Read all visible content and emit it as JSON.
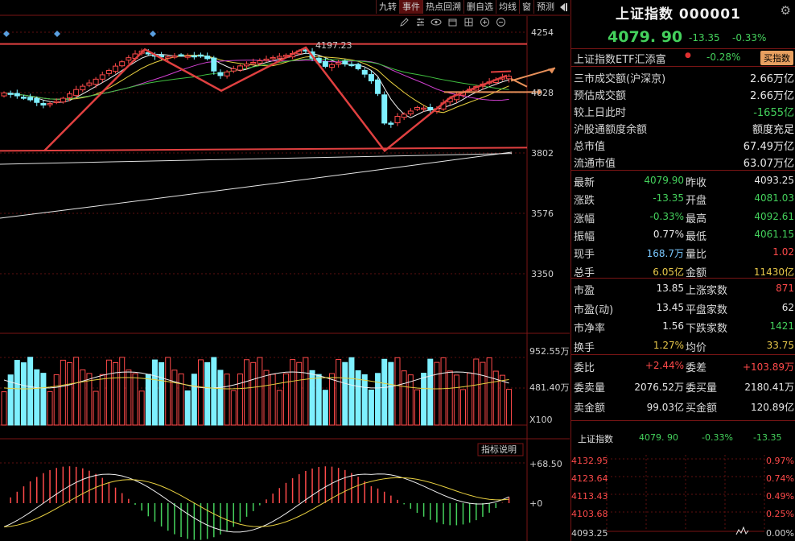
{
  "toolbar": {
    "buttons": [
      "九转",
      "事件",
      "热点回溯",
      "删自选",
      "均线",
      "窗",
      "预测"
    ],
    "icons": [
      "pen-icon",
      "settings-slider-icon",
      "eye-icon",
      "box-icon",
      "grid-icon",
      "add-circle-icon",
      "remove-circle-icon"
    ]
  },
  "kline": {
    "y_labels": [
      "4254",
      "4028",
      "3802",
      "3576",
      "3350"
    ],
    "y_values": [
      4254,
      4028,
      3802,
      3576,
      3350
    ],
    "high_label": "4197.23",
    "high_value": 4197.23,
    "low_value": 3800
  },
  "volume": {
    "y_labels": [
      "952.55万",
      "481.40万",
      "X100"
    ]
  },
  "macd": {
    "button_label": "指标说明",
    "y_labels": [
      "+68.50",
      "+0"
    ]
  },
  "quote": {
    "title": "上证指数 000001",
    "price": "4079. 90",
    "change": "-13.35",
    "pct": "-0.33%",
    "etf_name": "上证指数ETF汇添富",
    "etf_pct": "-0.28%",
    "etf_button": "买指数",
    "rows": [
      {
        "label": "三市成交额(沪深京)",
        "value": "2.66万亿",
        "color": "wh"
      },
      {
        "label": "预估成交额",
        "value": "2.66万亿",
        "color": "wh"
      },
      {
        "label": "较上日此时",
        "value": "-1655亿",
        "color": "gr"
      },
      {
        "label": "沪股通额度余额",
        "value": "额度充足",
        "color": "wh"
      },
      {
        "label": "总市值",
        "value": "67.49万亿",
        "color": "wh"
      },
      {
        "label": "流通市值",
        "value": "63.07万亿",
        "color": "wh"
      }
    ],
    "pairs1": [
      {
        "l1": "最新",
        "v1": "4079.90",
        "c1": "gr",
        "l2": "昨收",
        "v2": "4093.25",
        "c2": "wh"
      },
      {
        "l1": "涨跌",
        "v1": "-13.35",
        "c1": "gr",
        "l2": "开盘",
        "v2": "4081.03",
        "c2": "gr"
      },
      {
        "l1": "涨幅",
        "v1": "-0.33%",
        "c1": "gr",
        "l2": "最高",
        "v2": "4092.61",
        "c2": "gr"
      },
      {
        "l1": "振幅",
        "v1": "0.77%",
        "c1": "wh",
        "l2": "最低",
        "v2": "4061.15",
        "c2": "gr"
      },
      {
        "l1": "现手",
        "v1": "168.7万",
        "c1": "bl",
        "l2": "量比",
        "v2": "1.02",
        "c2": "rd"
      },
      {
        "l1": "总手",
        "v1": "6.05亿",
        "c1": "yl",
        "l2": "金额",
        "v2": "11430亿",
        "c2": "yl"
      }
    ],
    "pairs2": [
      {
        "l1": "市盈",
        "v1": "13.85",
        "c1": "wh",
        "l2": "上涨家数",
        "v2": "871",
        "c2": "rd"
      },
      {
        "l1": "市盈(动)",
        "v1": "13.45",
        "c1": "wh",
        "l2": "平盘家数",
        "v2": "62",
        "c2": "wh"
      },
      {
        "l1": "市净率",
        "v1": "1.56",
        "c1": "wh",
        "l2": "下跌家数",
        "v2": "1421",
        "c2": "gr"
      },
      {
        "l1": "换手",
        "v1": "1.27%",
        "c1": "yl",
        "l2": "均价",
        "v2": "33.75",
        "c2": "yl"
      }
    ],
    "pairs3": [
      {
        "l1": "委比",
        "v1": "+2.44%",
        "c1": "rd",
        "l2": "委差",
        "v2": "+103.89万",
        "c2": "rd"
      },
      {
        "l1": "委卖量",
        "v1": "2076.52万",
        "c1": "wh",
        "l2": "委买量",
        "v2": "2180.41万",
        "c2": "wh"
      },
      {
        "l1": "卖金额",
        "v1": "99.03亿",
        "c1": "wh",
        "l2": "买金额",
        "v2": "120.89亿",
        "c2": "wh"
      }
    ]
  },
  "mini": {
    "name": "上证指数",
    "price": "4079. 90",
    "pct": "-0.33%",
    "change": "-13.35",
    "left_labels": [
      "4132.95",
      "4123.64",
      "4113.43",
      "4103.68",
      "4093.25"
    ],
    "right_labels": [
      "0.97%",
      "0.74%",
      "0.49%",
      "0.25%",
      "0.00%"
    ]
  },
  "colors": {
    "background": "#000000",
    "up_red": "#ff4a4a",
    "down_cyan": "#7ef0ff",
    "grid_red": "#7a1515",
    "price_green": "#44d15c"
  }
}
